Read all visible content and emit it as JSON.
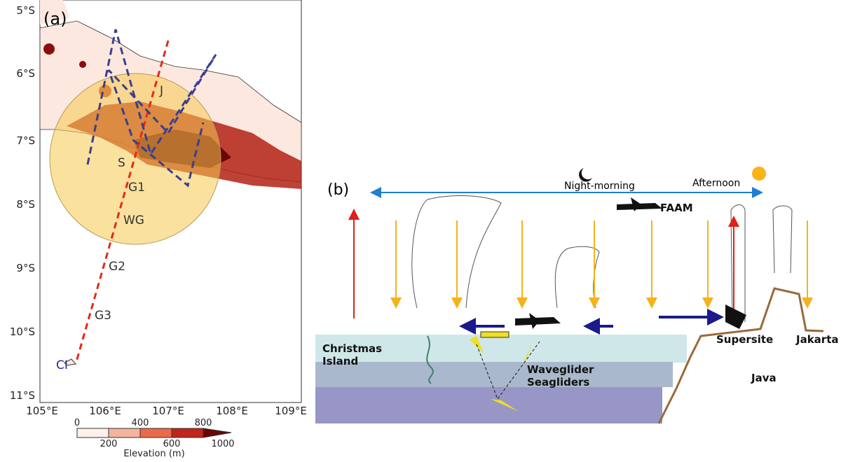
{
  "panel_a": {
    "label": "(a)",
    "y_ticks": [
      "5°S",
      "6°S",
      "7°S",
      "8°S",
      "9°S",
      "10°S",
      "11°S"
    ],
    "x_ticks": [
      "105°E",
      "106°E",
      "107°E",
      "108°E",
      "109°E"
    ],
    "sites": {
      "j": "J",
      "s": "S",
      "g1": "G1",
      "wg": "WG",
      "g2": "G2",
      "g3": "G3",
      "ci": "CI"
    },
    "colorbar": {
      "top_labels": [
        "0",
        "400",
        "800"
      ],
      "bottom_labels": [
        "200",
        "600",
        "1000"
      ],
      "title": "Elevation (m)"
    }
  },
  "panel_b": {
    "label": "(b)",
    "night_morning": "Night-morning",
    "afternoon": "Afternoon",
    "faam": "FAAM",
    "christmas_island": [
      "Christmas",
      "Island"
    ],
    "waveglider": "Waveglider",
    "seagliders": "Seagliders",
    "supersite": "Supersite",
    "jakarta": "Jakarta",
    "java": "Java"
  }
}
